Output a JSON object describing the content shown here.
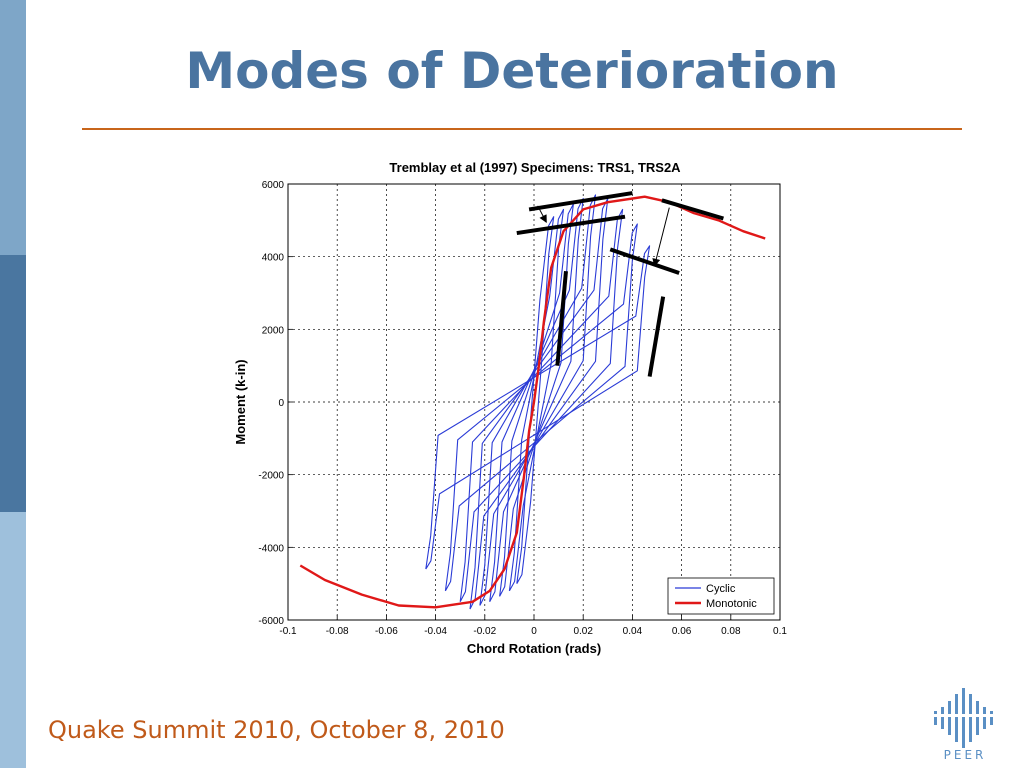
{
  "slide": {
    "title": "Modes of Deterioration",
    "footer": "Quake Summit 2010, October 8, 2010",
    "logo_text": "PEER",
    "logo_icon": "peer-logo-icon"
  },
  "colors": {
    "title": "#4a74a0",
    "rule": "#c8651b",
    "footer": "#c05a1a",
    "cyclic": "#2a3bd6",
    "monotonic": "#e01818",
    "annotation": "#000000"
  },
  "chart_data": {
    "type": "line",
    "title": "Tremblay et al (1997) Specimens: TRS1, TRS2A",
    "xlabel": "Chord Rotation (rads)",
    "ylabel": "Moment (k-in)",
    "xlim": [
      -0.1,
      0.1
    ],
    "ylim": [
      -6000,
      6000
    ],
    "xticks": [
      -0.1,
      -0.08,
      -0.06,
      -0.04,
      -0.02,
      0,
      0.02,
      0.04,
      0.06,
      0.08,
      0.1
    ],
    "yticks": [
      -6000,
      -4000,
      -2000,
      0,
      2000,
      4000,
      6000
    ],
    "xtick_labels": [
      "-0.1",
      "-0.08",
      "-0.06",
      "-0.04",
      "-0.02",
      "0",
      "0.02",
      "0.04",
      "0.06",
      "0.08",
      "0.1"
    ],
    "ytick_labels": [
      "-6000",
      "-4000",
      "-2000",
      "0",
      "2000",
      "4000",
      "6000"
    ],
    "grid": true,
    "legend": {
      "placement": "bottom-right",
      "entries": [
        "Cyclic",
        "Monotonic"
      ]
    },
    "series": [
      {
        "name": "Cyclic",
        "color": "#2a3bd6",
        "loops": [
          {
            "amplitude": 0.008,
            "neg_amplitude": -0.007,
            "peak_moment": 5100,
            "trough_moment": -5000
          },
          {
            "amplitude": 0.012,
            "neg_amplitude": -0.01,
            "peak_moment": 5300,
            "trough_moment": -5200
          },
          {
            "amplitude": 0.016,
            "neg_amplitude": -0.014,
            "peak_moment": 5450,
            "trough_moment": -5350
          },
          {
            "amplitude": 0.02,
            "neg_amplitude": -0.018,
            "peak_moment": 5600,
            "trough_moment": -5500
          },
          {
            "amplitude": 0.025,
            "neg_amplitude": -0.022,
            "peak_moment": 5700,
            "trough_moment": -5600
          },
          {
            "amplitude": 0.03,
            "neg_amplitude": -0.026,
            "peak_moment": 5600,
            "trough_moment": -5700
          },
          {
            "amplitude": 0.036,
            "neg_amplitude": -0.03,
            "peak_moment": 5300,
            "trough_moment": -5500
          },
          {
            "amplitude": 0.042,
            "neg_amplitude": -0.036,
            "peak_moment": 4900,
            "trough_moment": -5200
          },
          {
            "amplitude": 0.047,
            "neg_amplitude": -0.044,
            "peak_moment": 4300,
            "trough_moment": -4600
          }
        ]
      },
      {
        "name": "Monotonic",
        "color": "#e01818",
        "x": [
          -0.095,
          -0.085,
          -0.07,
          -0.055,
          -0.04,
          -0.025,
          -0.018,
          -0.012,
          -0.007,
          -0.004,
          -0.002,
          0,
          0.002,
          0.004,
          0.007,
          0.012,
          0.02,
          0.03,
          0.045,
          0.055,
          0.065,
          0.075,
          0.085,
          0.094
        ],
        "y": [
          -4500,
          -4900,
          -5300,
          -5600,
          -5650,
          -5500,
          -5200,
          -4600,
          -3600,
          -2000,
          -800,
          0,
          1000,
          2200,
          3700,
          4700,
          5300,
          5500,
          5650,
          5500,
          5200,
          5000,
          4700,
          4500
        ]
      }
    ],
    "annotations": [
      {
        "type": "line",
        "x": [
          -0.002,
          0.04
        ],
        "y": [
          5300,
          5750
        ]
      },
      {
        "type": "line",
        "x": [
          -0.007,
          0.037
        ],
        "y": [
          4650,
          5100
        ]
      },
      {
        "type": "line",
        "x": [
          0.052,
          0.077
        ],
        "y": [
          5550,
          5050
        ]
      },
      {
        "type": "line",
        "x": [
          0.031,
          0.059
        ],
        "y": [
          4200,
          3550
        ]
      },
      {
        "type": "line",
        "x": [
          0.0095,
          0.013
        ],
        "y": [
          1000,
          3600
        ]
      },
      {
        "type": "line",
        "x": [
          0.047,
          0.0525
        ],
        "y": [
          700,
          2900
        ]
      },
      {
        "type": "arrow",
        "x": [
          0.0015,
          0.005
        ],
        "y": [
          5400,
          4950
        ]
      },
      {
        "type": "arrow",
        "x": [
          0.055,
          0.049
        ],
        "y": [
          5350,
          3750
        ]
      }
    ]
  }
}
